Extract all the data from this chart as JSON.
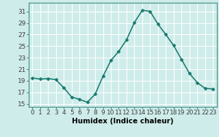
{
  "x": [
    0,
    1,
    2,
    3,
    4,
    5,
    6,
    7,
    8,
    9,
    10,
    11,
    12,
    13,
    14,
    15,
    16,
    17,
    18,
    19,
    20,
    21,
    22,
    23
  ],
  "y": [
    19.5,
    19.3,
    19.4,
    19.2,
    17.8,
    16.2,
    15.8,
    15.3,
    16.7,
    19.8,
    22.5,
    24.1,
    26.1,
    29.1,
    31.2,
    31.0,
    28.8,
    27.0,
    25.1,
    22.7,
    20.3,
    18.7,
    17.7,
    17.6
  ],
  "line_color": "#1a7a6e",
  "marker": "D",
  "marker_size": 2.5,
  "bg_color": "#ceecea",
  "grid_color": "#b0d8d4",
  "xlabel": "Humidex (Indice chaleur)",
  "ylabel": "",
  "ylim": [
    14.5,
    32.5
  ],
  "xlim": [
    -0.5,
    23.5
  ],
  "yticks": [
    15,
    17,
    19,
    21,
    23,
    25,
    27,
    29,
    31
  ],
  "xtick_labels": [
    "0",
    "1",
    "2",
    "3",
    "4",
    "5",
    "6",
    "7",
    "8",
    "9",
    "10",
    "11",
    "12",
    "13",
    "14",
    "15",
    "16",
    "17",
    "18",
    "19",
    "20",
    "21",
    "22",
    "23"
  ],
  "xlabel_fontsize": 7.5,
  "tick_fontsize": 6.5,
  "line_width": 1.2,
  "spine_color": "#3a8a7a",
  "tick_color": "#3a8a7a",
  "label_color": "#3a3a3a",
  "grid_major_color": "#ffffff",
  "grid_minor_color": "#d8eeeb"
}
